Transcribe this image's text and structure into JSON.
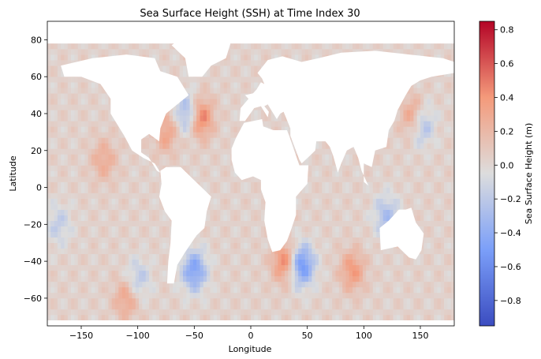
{
  "chart_data": {
    "type": "heatmap",
    "title": "Sea Surface Height (SSH) at Time Index 30",
    "xlabel": "Longitude",
    "ylabel": "Latitude",
    "xlim": [
      -180,
      180
    ],
    "ylim": [
      -75,
      90
    ],
    "xticks": [
      -150,
      -100,
      -50,
      0,
      50,
      100,
      150
    ],
    "xtick_labels": [
      "−150",
      "−100",
      "−50",
      "0",
      "50",
      "100",
      "150"
    ],
    "yticks": [
      -60,
      -40,
      -20,
      0,
      20,
      40,
      60,
      80
    ],
    "ytick_labels": [
      "−60",
      "−40",
      "−20",
      "0",
      "20",
      "40",
      "60",
      "80"
    ],
    "grid": false,
    "colormap": "coolwarm",
    "land_color": "#ffffff",
    "colorbar": {
      "label": "Sea Surface Height (m)",
      "vmin": -0.95,
      "vmax": 0.85,
      "ticks": [
        -0.8,
        -0.6,
        -0.4,
        -0.2,
        0.0,
        0.2,
        0.4,
        0.6,
        0.8
      ],
      "tick_labels": [
        "−0.8",
        "−0.6",
        "−0.4",
        "−0.2",
        "0.0",
        "0.2",
        "0.4",
        "0.6",
        "0.8"
      ],
      "placement": "right"
    },
    "background_value": 0.03,
    "regions": [
      {
        "lon": -45,
        "lat": 38,
        "value": 0.55
      },
      {
        "lon": -55,
        "lat": 40,
        "value": -0.45
      },
      {
        "lon": -75,
        "lat": 30,
        "value": 0.3
      },
      {
        "lon": 145,
        "lat": 38,
        "value": 0.5
      },
      {
        "lon": 150,
        "lat": 35,
        "value": -0.5
      },
      {
        "lon": -50,
        "lat": -45,
        "value": -0.5
      },
      {
        "lon": 45,
        "lat": -42,
        "value": -0.6
      },
      {
        "lon": 30,
        "lat": -40,
        "value": 0.45
      },
      {
        "lon": 90,
        "lat": -45,
        "value": 0.35
      },
      {
        "lon": -130,
        "lat": 15,
        "value": 0.25
      },
      {
        "lon": -100,
        "lat": -50,
        "value": -0.25
      },
      {
        "lon": 120,
        "lat": -15,
        "value": -0.3
      },
      {
        "lon": -170,
        "lat": -20,
        "value": -0.2
      },
      {
        "lon": -110,
        "lat": -60,
        "value": 0.3
      }
    ]
  }
}
